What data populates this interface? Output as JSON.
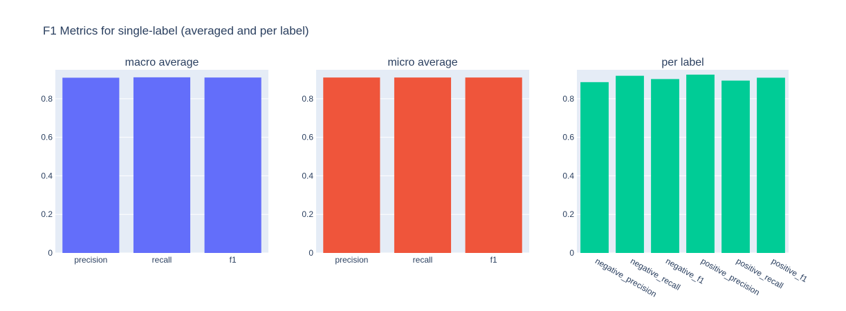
{
  "title": "F1 Metrics for single-label (averaged and per label)",
  "chart_data": [
    {
      "type": "bar",
      "title": "macro average",
      "categories": [
        "precision",
        "recall",
        "f1"
      ],
      "values": [
        0.909,
        0.911,
        0.91
      ],
      "color": "#636efa",
      "ylim": [
        0,
        0.95
      ],
      "yticks": [
        "0",
        "0.2",
        "0.4",
        "0.6",
        "0.8"
      ],
      "grid": true,
      "legend": "none"
    },
    {
      "type": "bar",
      "title": "micro average",
      "categories": [
        "precision",
        "recall",
        "f1"
      ],
      "values": [
        0.91,
        0.91,
        0.91
      ],
      "color": "#ef553b",
      "ylim": [
        0,
        0.95
      ],
      "yticks": [
        "0",
        "0.2",
        "0.4",
        "0.6",
        "0.8"
      ],
      "grid": true,
      "legend": "none"
    },
    {
      "type": "bar",
      "title": "per label",
      "categories": [
        "negative_precision",
        "negative_recall",
        "negative_f1",
        "positive_precision",
        "positive_recall",
        "positive_f1"
      ],
      "values": [
        0.886,
        0.919,
        0.902,
        0.925,
        0.894,
        0.909
      ],
      "color": "#00cc96",
      "ylim": [
        0,
        0.95
      ],
      "yticks": [
        "0",
        "0.2",
        "0.4",
        "0.6",
        "0.8"
      ],
      "grid": true,
      "legend": "none"
    }
  ]
}
